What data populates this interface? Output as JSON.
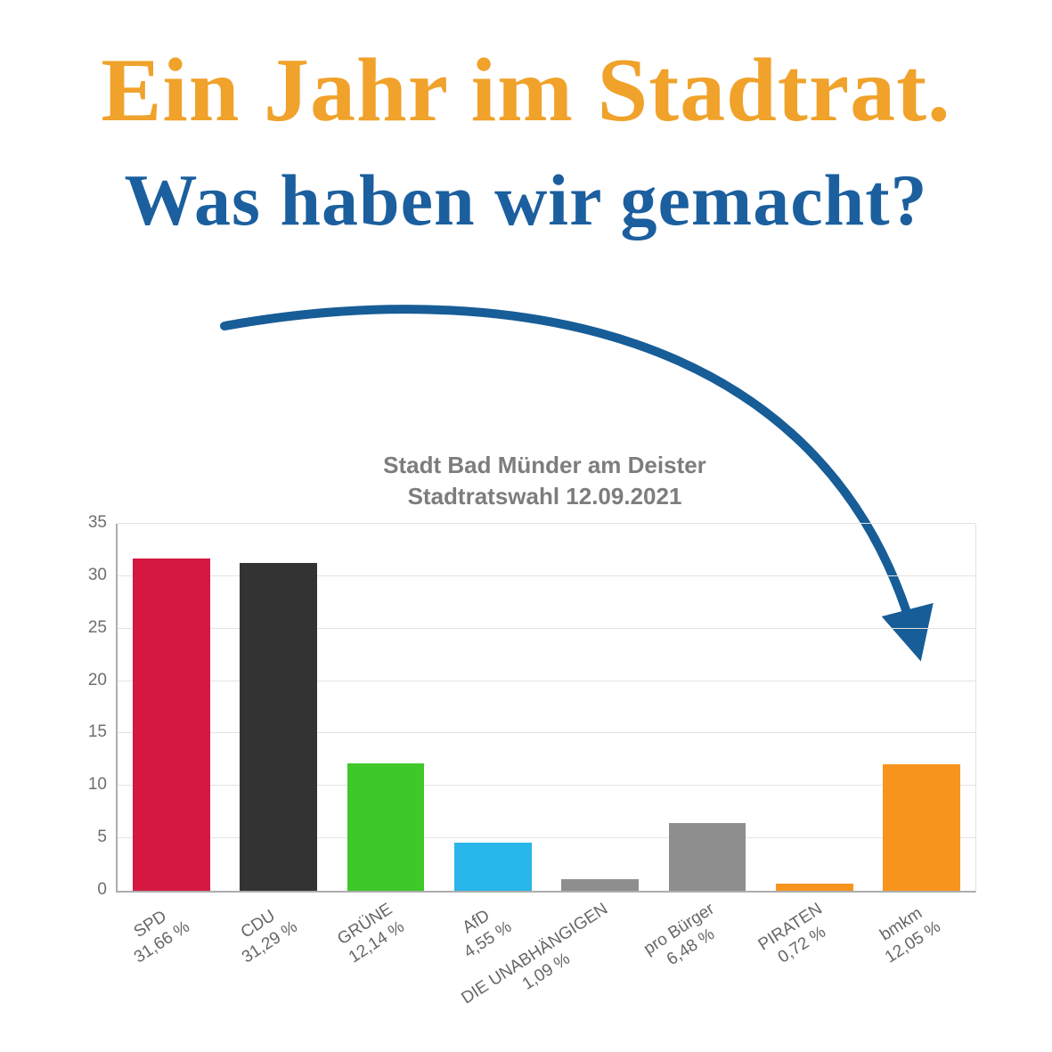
{
  "header": {
    "title": "Ein Jahr im Stadtrat.",
    "subtitle": "Was haben wir gemacht?"
  },
  "annotations": {
    "arrow_color": "#175d97"
  },
  "chart_data": {
    "type": "bar",
    "title_lines": [
      "Stadt Bad Münder am Deister",
      "Stadtratswahl 12.09.2021"
    ],
    "categories": [
      "SPD",
      "CDU",
      "GRÜNE",
      "AfD",
      "DIE UNABHÄNGIGEN",
      "pro Bürger",
      "PIRATEN",
      "bmkm"
    ],
    "values": [
      31.66,
      31.29,
      12.14,
      4.55,
      1.09,
      6.48,
      0.72,
      12.05
    ],
    "value_labels": [
      "31,66 %",
      "31,29 %",
      "12,14 %",
      "4,55 %",
      "1,09 %",
      "6,48 %",
      "0,72 %",
      "12,05 %"
    ],
    "colors": [
      "#d41841",
      "#333333",
      "#3ec928",
      "#29b6e8",
      "#8e8e8e",
      "#8e8e8e",
      "#f7941e",
      "#f7941e"
    ],
    "ylim": [
      0,
      35
    ],
    "yticks": [
      0,
      5,
      10,
      15,
      20,
      25,
      30,
      35
    ],
    "grid": true,
    "legend": false,
    "xlabel": "",
    "ylabel": ""
  }
}
